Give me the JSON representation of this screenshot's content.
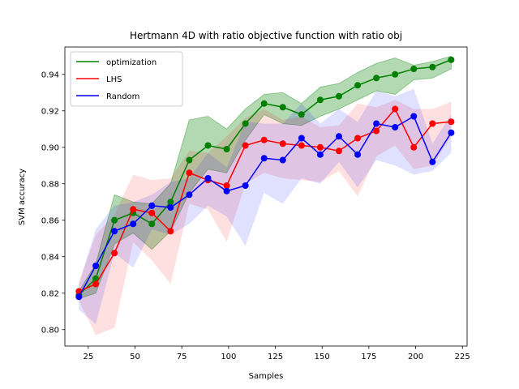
{
  "chart_data": {
    "type": "line",
    "title": "Hertmann 4D with ratio objective function with ratio obj",
    "xlabel": "Samples",
    "ylabel": "SVM accuracy",
    "xlim": [
      12.5,
      227.5
    ],
    "ylim": [
      0.791,
      0.955
    ],
    "xticks": [
      25,
      50,
      75,
      100,
      125,
      150,
      175,
      200,
      225
    ],
    "yticks": [
      0.8,
      0.82,
      0.84,
      0.86,
      0.88,
      0.9,
      0.92,
      0.94
    ],
    "legend_position": "top-left",
    "x": [
      20,
      29,
      39,
      49,
      59,
      69,
      79,
      89,
      99,
      109,
      119,
      129,
      139,
      149,
      159,
      169,
      179,
      189,
      199,
      209,
      219
    ],
    "series": [
      {
        "name": "optimization",
        "color": "#008000",
        "values": [
          0.819,
          0.828,
          0.86,
          0.864,
          0.858,
          0.87,
          0.893,
          0.901,
          0.899,
          0.913,
          0.924,
          0.922,
          0.918,
          0.926,
          0.928,
          0.934,
          0.938,
          0.94,
          0.943,
          0.944,
          0.948
        ],
        "band_low": [
          0.817,
          0.82,
          0.847,
          0.853,
          0.844,
          0.854,
          0.875,
          0.888,
          0.886,
          0.904,
          0.918,
          0.913,
          0.912,
          0.917,
          0.921,
          0.926,
          0.931,
          0.929,
          0.937,
          0.938,
          0.943
        ],
        "band_high": [
          0.821,
          0.836,
          0.874,
          0.87,
          0.869,
          0.88,
          0.915,
          0.917,
          0.91,
          0.921,
          0.929,
          0.93,
          0.924,
          0.933,
          0.935,
          0.941,
          0.946,
          0.949,
          0.945,
          0.947,
          0.95
        ]
      },
      {
        "name": "LHS",
        "color": "#ff0000",
        "values": [
          0.821,
          0.825,
          0.842,
          0.866,
          0.864,
          0.854,
          0.886,
          0.882,
          0.879,
          0.901,
          0.904,
          0.902,
          0.901,
          0.9,
          0.898,
          0.905,
          0.909,
          0.921,
          0.9,
          0.913,
          0.914
        ],
        "band_low": [
          0.816,
          0.797,
          0.801,
          0.848,
          0.838,
          0.825,
          0.869,
          0.866,
          0.848,
          0.88,
          0.886,
          0.883,
          0.882,
          0.881,
          0.887,
          0.873,
          0.895,
          0.901,
          0.888,
          0.89,
          0.906
        ],
        "band_high": [
          0.826,
          0.852,
          0.863,
          0.885,
          0.882,
          0.883,
          0.898,
          0.897,
          0.906,
          0.916,
          0.921,
          0.915,
          0.917,
          0.911,
          0.912,
          0.924,
          0.922,
          0.926,
          0.921,
          0.921,
          0.925
        ]
      },
      {
        "name": "Random",
        "color": "#0000ff",
        "values": [
          0.818,
          0.835,
          0.854,
          0.858,
          0.868,
          0.867,
          0.874,
          0.883,
          0.876,
          0.879,
          0.894,
          0.893,
          0.905,
          0.896,
          0.906,
          0.896,
          0.913,
          0.911,
          0.917,
          0.892,
          0.908
        ],
        "band_low": [
          0.811,
          0.803,
          0.842,
          0.834,
          0.855,
          0.852,
          0.858,
          0.868,
          0.862,
          0.846,
          0.875,
          0.869,
          0.883,
          0.88,
          0.892,
          0.878,
          0.893,
          0.89,
          0.885,
          0.887,
          0.897
        ],
        "band_high": [
          0.825,
          0.855,
          0.868,
          0.87,
          0.874,
          0.881,
          0.883,
          0.897,
          0.889,
          0.914,
          0.913,
          0.913,
          0.924,
          0.913,
          0.921,
          0.914,
          0.931,
          0.928,
          0.932,
          0.902,
          0.918
        ]
      }
    ]
  }
}
